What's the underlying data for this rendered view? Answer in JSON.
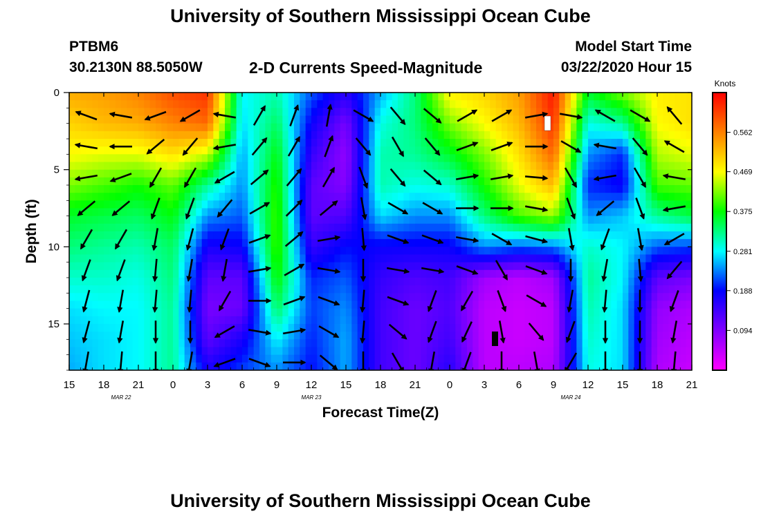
{
  "page": {
    "title": "University of Southern Mississippi Ocean Cube",
    "footer_title": "University of Southern Mississippi Ocean Cube",
    "station_id": "PTBM6",
    "station_coords": "30.2130N 88.5050W",
    "plot_title": "2-D Currents Speed-Magnitude",
    "model_label": "Model Start Time",
    "model_start": "03/22/2020 Hour 15"
  },
  "chart_data": {
    "type": "heatmap",
    "title": "2-D Currents Speed-Magnitude",
    "xlabel": "Forecast Time(Z)",
    "ylabel": "Depth (ft)",
    "x_unit": "hours since 03/22/2020 15Z",
    "x_range": [
      0,
      54
    ],
    "y_range": [
      0,
      18
    ],
    "y_inverted": true,
    "x_ticks": [
      {
        "v": 0,
        "label": "15"
      },
      {
        "v": 3,
        "label": "18"
      },
      {
        "v": 6,
        "label": "21"
      },
      {
        "v": 9,
        "label": "0"
      },
      {
        "v": 12,
        "label": "3"
      },
      {
        "v": 15,
        "label": "6"
      },
      {
        "v": 18,
        "label": "9"
      },
      {
        "v": 21,
        "label": "12"
      },
      {
        "v": 24,
        "label": "15"
      },
      {
        "v": 27,
        "label": "18"
      },
      {
        "v": 30,
        "label": "21"
      },
      {
        "v": 33,
        "label": "0"
      },
      {
        "v": 36,
        "label": "3"
      },
      {
        "v": 39,
        "label": "6"
      },
      {
        "v": 42,
        "label": "9"
      },
      {
        "v": 45,
        "label": "12"
      },
      {
        "v": 48,
        "label": "15"
      },
      {
        "v": 51,
        "label": "18"
      },
      {
        "v": 54,
        "label": "21"
      }
    ],
    "date_labels": [
      {
        "v": 4.5,
        "label": "MAR 22"
      },
      {
        "v": 21,
        "label": "MAR 23"
      },
      {
        "v": 43.5,
        "label": "MAR 24"
      }
    ],
    "y_ticks": [
      {
        "v": 0,
        "label": "0"
      },
      {
        "v": 5,
        "label": "5"
      },
      {
        "v": 10,
        "label": "10"
      },
      {
        "v": 15,
        "label": "15"
      }
    ],
    "colorbar": {
      "unit_label": "Knots",
      "min": 0.0,
      "max": 0.656,
      "ticks": [
        {
          "v": 0.094,
          "label": "0.094"
        },
        {
          "v": 0.188,
          "label": "0.188"
        },
        {
          "v": 0.281,
          "label": "0.281"
        },
        {
          "v": 0.375,
          "label": "0.375"
        },
        {
          "v": 0.469,
          "label": "0.469"
        },
        {
          "v": 0.562,
          "label": "0.562"
        }
      ],
      "colors": [
        "#ff00ff",
        "#8000ff",
        "#0000ff",
        "#00ffff",
        "#00ff00",
        "#ffff00",
        "#ff8000",
        "#ff0000"
      ]
    },
    "speed_columns": [
      {
        "x": 0,
        "speed": [
          0.53,
          0.5,
          0.47,
          0.42,
          0.36,
          0.33,
          0.3,
          0.27,
          0.26,
          0.25
        ]
      },
      {
        "x": 3,
        "speed": [
          0.54,
          0.52,
          0.46,
          0.4,
          0.35,
          0.32,
          0.3,
          0.28,
          0.27,
          0.27
        ]
      },
      {
        "x": 6,
        "speed": [
          0.56,
          0.53,
          0.46,
          0.38,
          0.34,
          0.31,
          0.29,
          0.28,
          0.28,
          0.28
        ]
      },
      {
        "x": 9,
        "speed": [
          0.6,
          0.56,
          0.49,
          0.41,
          0.37,
          0.34,
          0.33,
          0.32,
          0.32,
          0.32
        ]
      },
      {
        "x": 12,
        "speed": [
          0.62,
          0.58,
          0.45,
          0.32,
          0.24,
          0.17,
          0.12,
          0.1,
          0.12,
          0.17
        ]
      },
      {
        "x": 15,
        "speed": [
          0.28,
          0.27,
          0.25,
          0.24,
          0.22,
          0.18,
          0.12,
          0.11,
          0.17,
          0.21
        ]
      },
      {
        "x": 18,
        "speed": [
          0.31,
          0.34,
          0.37,
          0.39,
          0.4,
          0.4,
          0.38,
          0.34,
          0.28,
          0.24
        ]
      },
      {
        "x": 21,
        "speed": [
          0.22,
          0.18,
          0.15,
          0.12,
          0.12,
          0.15,
          0.2,
          0.21,
          0.2,
          0.19
        ]
      },
      {
        "x": 24,
        "speed": [
          0.16,
          0.1,
          0.08,
          0.09,
          0.13,
          0.19,
          0.22,
          0.24,
          0.25,
          0.25
        ]
      },
      {
        "x": 27,
        "speed": [
          0.25,
          0.29,
          0.31,
          0.31,
          0.27,
          0.18,
          0.15,
          0.14,
          0.14,
          0.14
        ]
      },
      {
        "x": 30,
        "speed": [
          0.33,
          0.33,
          0.32,
          0.29,
          0.24,
          0.18,
          0.13,
          0.11,
          0.11,
          0.11
        ]
      },
      {
        "x": 33,
        "speed": [
          0.48,
          0.42,
          0.36,
          0.3,
          0.24,
          0.18,
          0.14,
          0.13,
          0.14,
          0.16
        ]
      },
      {
        "x": 36,
        "speed": [
          0.5,
          0.47,
          0.42,
          0.38,
          0.33,
          0.24,
          0.07,
          0.05,
          0.05,
          0.05
        ]
      },
      {
        "x": 39,
        "speed": [
          0.54,
          0.52,
          0.49,
          0.46,
          0.4,
          0.22,
          0.05,
          0.04,
          0.04,
          0.05
        ]
      },
      {
        "x": 42,
        "speed": [
          0.64,
          0.62,
          0.58,
          0.52,
          0.43,
          0.23,
          0.07,
          0.05,
          0.05,
          0.06
        ]
      },
      {
        "x": 45,
        "speed": [
          0.36,
          0.29,
          0.24,
          0.2,
          0.24,
          0.3,
          0.32,
          0.31,
          0.3,
          0.29
        ]
      },
      {
        "x": 48,
        "speed": [
          0.42,
          0.32,
          0.2,
          0.18,
          0.26,
          0.28,
          0.28,
          0.27,
          0.27,
          0.27
        ]
      },
      {
        "x": 51,
        "speed": [
          0.48,
          0.47,
          0.44,
          0.4,
          0.32,
          0.22,
          0.12,
          0.08,
          0.07,
          0.06
        ]
      },
      {
        "x": 54,
        "speed": [
          0.49,
          0.49,
          0.46,
          0.41,
          0.35,
          0.21,
          0.1,
          0.06,
          0.05,
          0.04
        ]
      }
    ],
    "depth_levels": [
      0,
      2,
      4,
      6,
      8,
      10,
      12,
      14,
      16,
      18
    ],
    "vector_rows_depth": [
      1.5,
      3.5,
      5.5,
      7.5,
      9.5,
      11.5,
      13.5,
      15.5,
      17.5
    ],
    "vector_columns": [
      {
        "x": 1.5,
        "dirs": [
          -70,
          -80,
          -100,
          -130,
          -150,
          -160,
          -165,
          -165,
          -170
        ]
      },
      {
        "x": 4.5,
        "dirs": [
          -80,
          -90,
          -110,
          -130,
          -150,
          -160,
          -170,
          -170,
          -175
        ]
      },
      {
        "x": 7.5,
        "dirs": [
          -110,
          -130,
          -150,
          -160,
          -170,
          -175,
          -175,
          -180,
          -180
        ]
      },
      {
        "x": 10.5,
        "dirs": [
          -120,
          -140,
          -150,
          -160,
          -165,
          -170,
          -175,
          -180,
          -170
        ]
      },
      {
        "x": 13.5,
        "dirs": [
          -80,
          -100,
          -120,
          -140,
          -160,
          -170,
          -150,
          -120,
          -110
        ]
      },
      {
        "x": 16.5,
        "dirs": [
          30,
          40,
          50,
          60,
          70,
          80,
          90,
          100,
          110
        ]
      },
      {
        "x": 19.5,
        "dirs": [
          20,
          30,
          40,
          45,
          50,
          60,
          70,
          80,
          90
        ]
      },
      {
        "x": 22.5,
        "dirs": [
          10,
          20,
          30,
          50,
          80,
          100,
          110,
          120,
          130
        ]
      },
      {
        "x": 25.5,
        "dirs": [
          120,
          140,
          160,
          170,
          175,
          180,
          -175,
          -175,
          -180
        ]
      },
      {
        "x": 28.5,
        "dirs": [
          140,
          150,
          140,
          120,
          110,
          100,
          110,
          130,
          150
        ]
      },
      {
        "x": 31.5,
        "dirs": [
          130,
          140,
          130,
          120,
          110,
          100,
          -160,
          -160,
          -170
        ]
      },
      {
        "x": 34.5,
        "dirs": [
          60,
          70,
          80,
          90,
          100,
          110,
          -150,
          -155,
          -160
        ]
      },
      {
        "x": 37.5,
        "dirs": [
          60,
          70,
          80,
          90,
          120,
          150,
          160,
          170,
          180
        ]
      },
      {
        "x": 40.5,
        "dirs": [
          80,
          90,
          95,
          100,
          105,
          110,
          120,
          140,
          170
        ]
      },
      {
        "x": 43.5,
        "dirs": [
          100,
          120,
          150,
          160,
          170,
          180,
          -170,
          -160,
          -150
        ]
      },
      {
        "x": 46.5,
        "dirs": [
          -60,
          -80,
          -100,
          -130,
          -160,
          -170,
          -175,
          -180,
          -180
        ]
      },
      {
        "x": 49.5,
        "dirs": [
          120,
          140,
          150,
          160,
          170,
          175,
          180,
          180,
          180
        ]
      },
      {
        "x": 52.5,
        "dirs": [
          -40,
          -60,
          -80,
          -100,
          -120,
          -140,
          -160,
          -170,
          -175
        ]
      }
    ]
  }
}
